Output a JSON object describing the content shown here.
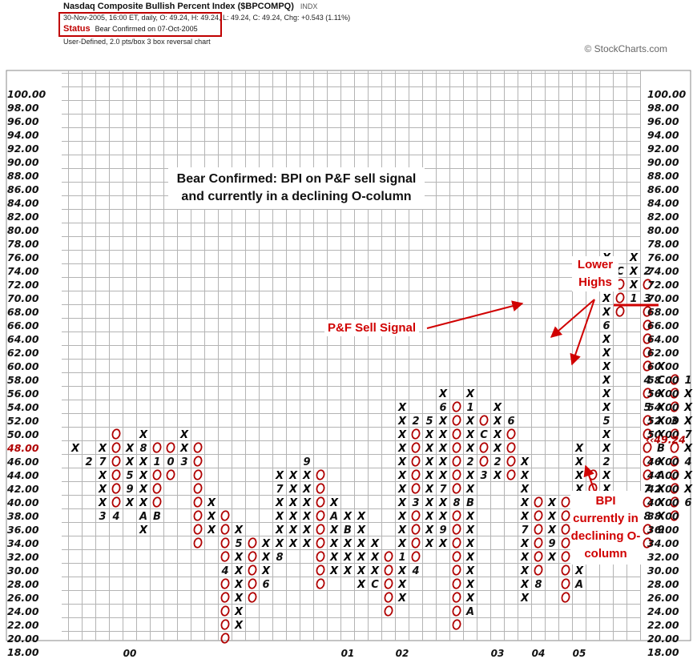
{
  "header": {
    "title": "Nasdaq Composite Bullish Percent Index ($BPCOMPQ)",
    "exchange": "INDX",
    "info": "30-Nov-2005, 16:00 ET, daily, O: 49.24, H: 49.24, L: 49.24, C: 49.24, Chg: +0.543 (1.11%)",
    "status_label": "Status",
    "status_text": "Bear Confirmed on 07-Oct-2005",
    "chart_type": "User-Defined, 2.0 pts/box 3 box reversal chart",
    "copyright": "© StockCharts.com"
  },
  "annotations": {
    "bear_confirmed": "Bear Confirmed: BPI on P&F sell signal and currently in a declining O-column",
    "sell_signal": "P&F Sell Signal",
    "lower_highs": "Lower Highs",
    "bpi_declining": "BPI currently in declining O-column"
  },
  "colors": {
    "x_mark": "#000000",
    "o_mark": "#b00000",
    "annotation_red": "#d00000",
    "grid": "#b4b4b4",
    "highlight_label": "#b00000"
  },
  "chart_data": {
    "type": "point-and-figure",
    "box_size": 2,
    "reversal": 3,
    "ylim": [
      18,
      100
    ],
    "y_ticks": [
      "100.00",
      "98.00",
      "96.00",
      "94.00",
      "92.00",
      "90.00",
      "88.00",
      "86.00",
      "84.00",
      "82.00",
      "80.00",
      "78.00",
      "76.00",
      "74.00",
      "72.00",
      "70.00",
      "68.00",
      "66.00",
      "64.00",
      "62.00",
      "60.00",
      "58.00",
      "56.00",
      "54.00",
      "52.00",
      "50.00",
      "48.00",
      "46.00",
      "44.00",
      "42.00",
      "40.00",
      "38.00",
      "36.00",
      "34.00",
      "32.00",
      "30.00",
      "28.00",
      "26.00",
      "24.00",
      "22.00",
      "20.00",
      "18.00"
    ],
    "highlight_left": "48.00",
    "highlight_right": "‹‹49.24",
    "last_value": 49.24,
    "year_labels": [
      {
        "col": 4,
        "label": "00"
      },
      {
        "col": 20,
        "label": "01"
      },
      {
        "col": 24,
        "label": "02"
      },
      {
        "col": 31,
        "label": "03"
      },
      {
        "col": 34,
        "label": "04"
      },
      {
        "col": 37,
        "label": "05"
      }
    ],
    "sell_signal_level": 68,
    "columns": [
      {
        "t": "X",
        "lo": 48,
        "hi": 48,
        "m": {}
      },
      {
        "t": "O",
        "lo": 46,
        "hi": 46,
        "m": {
          "46": "2"
        }
      },
      {
        "t": "X",
        "lo": 38,
        "hi": 48,
        "m": {
          "38": "3",
          "46": "7"
        }
      },
      {
        "t": "O",
        "lo": 38,
        "hi": 50,
        "m": {
          "38": "4"
        }
      },
      {
        "t": "X",
        "lo": 40,
        "hi": 48,
        "m": {
          "40": "X",
          "42": "9",
          "44": "5"
        }
      },
      {
        "t": "X",
        "lo": 36,
        "hi": 50,
        "m": {
          "38": "A",
          "48": "8"
        }
      },
      {
        "t": "O",
        "lo": 38,
        "hi": 48,
        "m": {
          "38": "B",
          "46": "1"
        }
      },
      {
        "t": "O",
        "lo": 44,
        "hi": 48,
        "m": {
          "46": "0"
        }
      },
      {
        "t": "X",
        "lo": 46,
        "hi": 50,
        "m": {
          "46": "3"
        }
      },
      {
        "t": "O",
        "lo": 34,
        "hi": 48,
        "m": {}
      },
      {
        "t": "X",
        "lo": 36,
        "hi": 40,
        "m": {}
      },
      {
        "t": "O",
        "lo": 20,
        "hi": 38,
        "m": {
          "30": "4"
        }
      },
      {
        "t": "X",
        "lo": 22,
        "hi": 36,
        "m": {
          "34": "5"
        }
      },
      {
        "t": "O",
        "lo": 26,
        "hi": 34,
        "m": {}
      },
      {
        "t": "X",
        "lo": 28,
        "hi": 34,
        "m": {
          "28": "6"
        }
      },
      {
        "t": "X",
        "lo": 32,
        "hi": 44,
        "m": {
          "32": "8",
          "42": "7"
        }
      },
      {
        "t": "X",
        "lo": 34,
        "hi": 44,
        "m": {}
      },
      {
        "t": "X",
        "lo": 34,
        "hi": 46,
        "m": {
          "46": "9"
        }
      },
      {
        "t": "O",
        "lo": 28,
        "hi": 44,
        "m": {}
      },
      {
        "t": "X",
        "lo": 30,
        "hi": 40,
        "m": {
          "38": "A"
        }
      },
      {
        "t": "X",
        "lo": 30,
        "hi": 38,
        "m": {
          "36": "B"
        }
      },
      {
        "t": "X",
        "lo": 28,
        "hi": 38,
        "m": {}
      },
      {
        "t": "X",
        "lo": 28,
        "hi": 34,
        "m": {
          "28": "C"
        }
      },
      {
        "t": "O",
        "lo": 24,
        "hi": 32,
        "m": {}
      },
      {
        "t": "X",
        "lo": 26,
        "hi": 54,
        "m": {
          "32": "1"
        }
      },
      {
        "t": "O",
        "lo": 30,
        "hi": 52,
        "m": {
          "30": "4",
          "40": "3",
          "52": "2"
        }
      },
      {
        "t": "X",
        "lo": 34,
        "hi": 52,
        "m": {
          "52": "5"
        }
      },
      {
        "t": "X",
        "lo": 34,
        "hi": 56,
        "m": {
          "36": "9",
          "42": "7",
          "54": "6"
        }
      },
      {
        "t": "O",
        "lo": 22,
        "hi": 54,
        "m": {
          "40": "8"
        }
      },
      {
        "t": "X",
        "lo": 24,
        "hi": 56,
        "m": {
          "24": "A",
          "40": "B",
          "46": "2",
          "54": "1"
        }
      },
      {
        "t": "O",
        "lo": 44,
        "hi": 52,
        "m": {
          "44": "3",
          "50": "C"
        }
      },
      {
        "t": "X",
        "lo": 44,
        "hi": 54,
        "m": {
          "46": "2"
        }
      },
      {
        "t": "O",
        "lo": 44,
        "hi": 52,
        "m": {
          "52": "6"
        }
      },
      {
        "t": "X",
        "lo": 26,
        "hi": 46,
        "m": {
          "36": "7"
        }
      },
      {
        "t": "O",
        "lo": 28,
        "hi": 40,
        "m": {
          "28": "8"
        }
      },
      {
        "t": "X",
        "lo": 32,
        "hi": 40,
        "m": {
          "34": "9"
        }
      },
      {
        "t": "O",
        "lo": 26,
        "hi": 40,
        "m": {}
      },
      {
        "t": "X",
        "lo": 28,
        "hi": 48,
        "m": {
          "28": "A",
          "36": "B"
        }
      },
      {
        "t": "O",
        "lo": 36,
        "hi": 44,
        "m": {
          "36": "3"
        }
      },
      {
        "t": "X",
        "lo": 36,
        "hi": 76,
        "m": {
          "46": "2",
          "52": "5",
          "66": "6",
          "72": "7",
          "74": "9"
        }
      },
      {
        "t": "O",
        "lo": 68,
        "hi": 74,
        "m": {
          "38": "4",
          "74": "C"
        }
      },
      {
        "t": "X",
        "lo": 70,
        "hi": 76,
        "m": {
          "70": "1"
        }
      },
      {
        "t": "O",
        "lo": 34,
        "hi": 74,
        "m": {
          "38": "8",
          "42": "7",
          "54": "5",
          "58": "4",
          "70": "3",
          "74": "2"
        }
      },
      {
        "t": "X",
        "lo": 36,
        "hi": 60,
        "m": {
          "36": "9",
          "44": "A",
          "48": "B",
          "58": "C"
        }
      },
      {
        "t": "O",
        "lo": 38,
        "hi": 58,
        "m": {
          "52": "3"
        }
      },
      {
        "t": "X",
        "lo": 40,
        "hi": 58,
        "m": {
          "40": "6",
          "46": "4",
          "50": "7",
          "58": "1"
        }
      },
      {
        "t": "O",
        "lo": 44,
        "hi": 56,
        "m": {
          "56": "8"
        }
      },
      {
        "t": "O",
        "lo": 44,
        "hi": 54,
        "m": {
          "54": "A"
        }
      }
    ]
  }
}
